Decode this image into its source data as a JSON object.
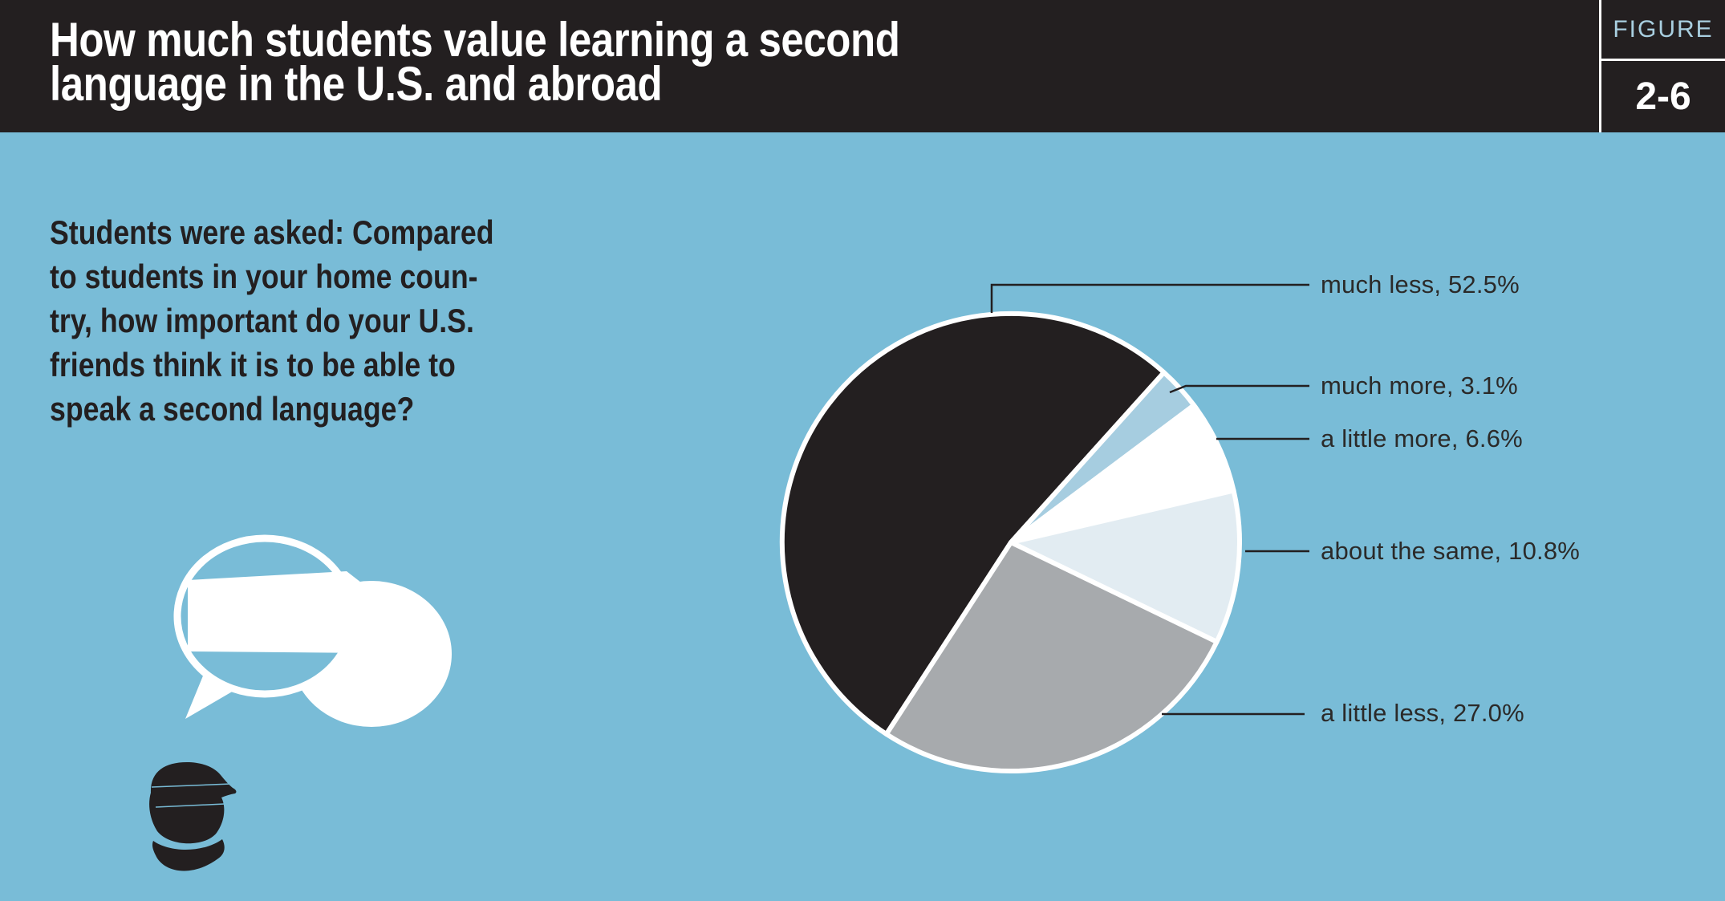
{
  "header": {
    "title_line1": "How much students value learning a second",
    "title_line2": "language in the U.S. and abroad",
    "figure_label": "FIGURE",
    "figure_number": "2-6"
  },
  "question": {
    "lines": [
      "Students were asked: Compared",
      "to students in your home coun-",
      "try, how important do your U.S.",
      "friends think it is to be able to",
      "speak a second language?"
    ]
  },
  "icons": {
    "speech": "speech-bubbles-icon",
    "person": "person-silhouette-icon"
  },
  "colors": {
    "background": "#79bcd7",
    "header_bg": "#231f20",
    "title_text": "#ffffff",
    "figure_label_text": "#a9cfe0",
    "figure_number_text": "#ffffff",
    "body_text": "#231f20",
    "label_text": "#2b2a29",
    "leader_line": "#231f20",
    "bubble_white": "#ffffff"
  },
  "chart_data": {
    "type": "pie",
    "title": "How much students value learning a second language in the U.S. and abroad",
    "slices": [
      {
        "label": "much less",
        "value": 52.5,
        "display": "much less, 52.5%",
        "color": "#231f20"
      },
      {
        "label": "much more",
        "value": 3.1,
        "display": "much more, 3.1%",
        "color": "#a6cde0"
      },
      {
        "label": "a little more",
        "value": 6.6,
        "display": "a little more, 6.6%",
        "color": "#ffffff"
      },
      {
        "label": "about the same",
        "value": 10.8,
        "display": "about the same, 10.8%",
        "color": "#e2ecf2"
      },
      {
        "label": "a little less",
        "value": 27.0,
        "display": "a little less, 27.0%",
        "color": "#a7aaad"
      }
    ],
    "start_angle_deg": 213,
    "direction": "clockwise",
    "slice_border_color": "#ffffff",
    "legend_position": "right-labels-with-leader-lines"
  }
}
